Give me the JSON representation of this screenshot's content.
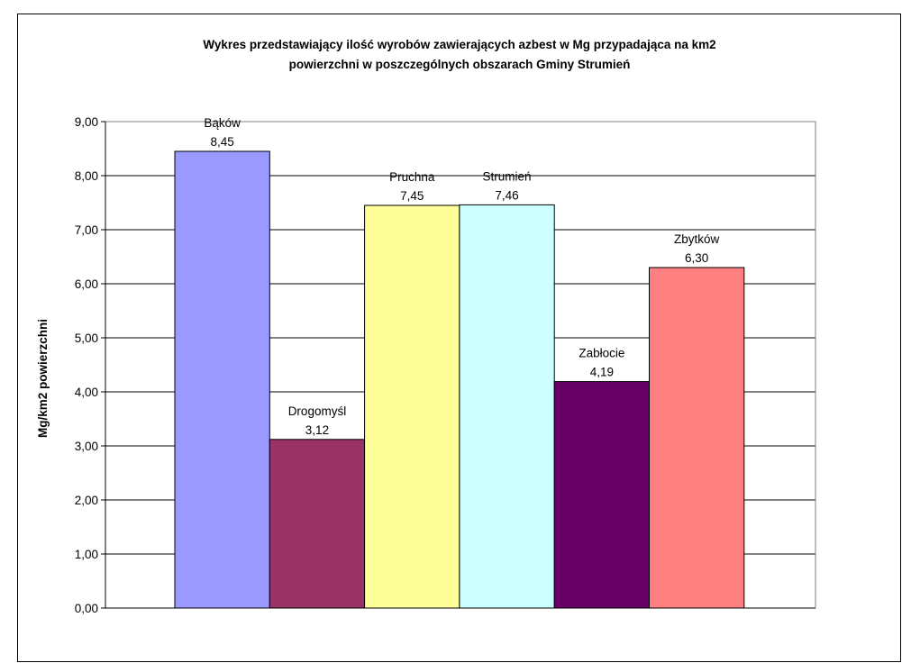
{
  "chart_data": {
    "type": "bar",
    "title_lines": [
      "Wykres przedstawiający ilość wyrobów zawierających azbest w Mg przypadająca na km2",
      "powierzchni w poszczególnych obszarach Gminy Strumień"
    ],
    "xlabel": "",
    "ylabel": "Mg/km2 powierzchni",
    "ylim": [
      0,
      9
    ],
    "ytick_step": 1,
    "ytick_labels": [
      "0,00",
      "1,00",
      "2,00",
      "3,00",
      "4,00",
      "5,00",
      "6,00",
      "7,00",
      "8,00",
      "9,00"
    ],
    "grid": true,
    "legend": "none",
    "categories": [
      "Bąków",
      "Drogomyśl",
      "Pruchna",
      "Strumień",
      "Zabłocie",
      "Zbytków"
    ],
    "values": [
      8.45,
      3.12,
      7.45,
      7.46,
      4.19,
      6.3
    ],
    "value_labels": [
      "8,45",
      "3,12",
      "7,45",
      "7,46",
      "4,19",
      "6,30"
    ],
    "colors": [
      "#9999ff",
      "#993366",
      "#ffff99",
      "#ccffff",
      "#660066",
      "#ff8080"
    ]
  }
}
